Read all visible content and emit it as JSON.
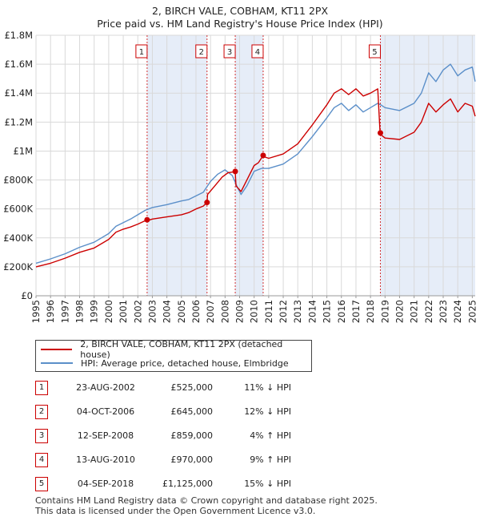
{
  "chart_data": {
    "type": "line",
    "title": "2, BIRCH VALE, COBHAM, KT11 2PX",
    "subtitle": "Price paid vs. HM Land Registry's House Price Index (HPI)",
    "xlim": [
      1995,
      2025.2
    ],
    "ylim": [
      0,
      1800000
    ],
    "x_ticks": [
      1995,
      1996,
      1997,
      1998,
      1999,
      2000,
      2001,
      2002,
      2003,
      2004,
      2005,
      2006,
      2007,
      2008,
      2009,
      2010,
      2011,
      2012,
      2013,
      2014,
      2015,
      2016,
      2017,
      2018,
      2019,
      2020,
      2021,
      2022,
      2023,
      2024,
      2025
    ],
    "y_ticks": [
      0,
      200000,
      400000,
      600000,
      800000,
      1000000,
      1200000,
      1400000,
      1600000,
      1800000
    ],
    "y_tick_labels": [
      "£0",
      "£200K",
      "£400K",
      "£600K",
      "£800K",
      "£1M",
      "£1.2M",
      "£1.4M",
      "£1.6M",
      "£1.8M"
    ],
    "grid": true,
    "series": [
      {
        "name": "2, BIRCH VALE, COBHAM, KT11 2PX (detached house)",
        "color": "#cc0000",
        "x": [
          1995,
          1996,
          1997,
          1998,
          1999,
          2000,
          2000.5,
          2001,
          2001.5,
          2002,
          2002.64,
          2002.7,
          2003,
          2004,
          2005,
          2005.5,
          2006,
          2006.5,
          2006.76,
          2006.8,
          2007.3,
          2007.8,
          2008.2,
          2008.55,
          2008.7,
          2008.75,
          2009.1,
          2009.5,
          2010,
          2010.3,
          2010.62,
          2010.7,
          2011,
          2012,
          2013,
          2014,
          2015,
          2015.5,
          2016,
          2016.5,
          2017,
          2017.5,
          2018,
          2018.5,
          2018.66,
          2018.75,
          2019,
          2020,
          2021,
          2021.5,
          2022,
          2022.5,
          2023,
          2023.5,
          2024,
          2024.5,
          2025,
          2025.2
        ],
        "y": [
          200000,
          225000,
          260000,
          300000,
          330000,
          390000,
          440000,
          460000,
          475000,
          495000,
          525000,
          520000,
          530000,
          545000,
          560000,
          575000,
          600000,
          620000,
          645000,
          700000,
          760000,
          820000,
          850000,
          855000,
          859000,
          760000,
          720000,
          800000,
          900000,
          920000,
          970000,
          960000,
          950000,
          980000,
          1050000,
          1180000,
          1320000,
          1400000,
          1430000,
          1390000,
          1430000,
          1380000,
          1400000,
          1430000,
          1125000,
          1110000,
          1090000,
          1080000,
          1130000,
          1200000,
          1330000,
          1270000,
          1320000,
          1360000,
          1270000,
          1330000,
          1310000,
          1240000
        ]
      },
      {
        "name": "HPI: Average price, detached house, Elmbridge",
        "color": "#5b8fc9",
        "x": [
          1995,
          1996,
          1997,
          1998,
          1999,
          2000,
          2000.5,
          2001,
          2001.5,
          2002,
          2002.5,
          2003,
          2004,
          2005,
          2005.5,
          2006,
          2006.5,
          2007,
          2007.5,
          2008,
          2008.5,
          2008.8,
          2009.1,
          2009.5,
          2010,
          2010.5,
          2011,
          2012,
          2013,
          2014,
          2015,
          2015.5,
          2016,
          2016.5,
          2017,
          2017.5,
          2018,
          2018.5,
          2018.7,
          2019,
          2020,
          2021,
          2021.5,
          2022,
          2022.5,
          2023,
          2023.5,
          2024,
          2024.5,
          2025,
          2025.2
        ],
        "y": [
          225000,
          255000,
          290000,
          335000,
          370000,
          430000,
          480000,
          505000,
          530000,
          560000,
          590000,
          610000,
          630000,
          655000,
          665000,
          690000,
          715000,
          790000,
          840000,
          870000,
          830000,
          760000,
          700000,
          760000,
          860000,
          880000,
          880000,
          910000,
          980000,
          1100000,
          1230000,
          1300000,
          1330000,
          1280000,
          1320000,
          1270000,
          1300000,
          1330000,
          1320000,
          1300000,
          1280000,
          1330000,
          1400000,
          1540000,
          1480000,
          1560000,
          1600000,
          1520000,
          1560000,
          1580000,
          1480000
        ]
      }
    ],
    "markers": [
      {
        "label": "1",
        "x": 2002.64,
        "y": 525000
      },
      {
        "label": "2",
        "x": 2006.76,
        "y": 645000
      },
      {
        "label": "3",
        "x": 2008.7,
        "y": 859000
      },
      {
        "label": "4",
        "x": 2010.62,
        "y": 970000
      },
      {
        "label": "5",
        "x": 2018.68,
        "y": 1125000
      }
    ],
    "shaded_ranges": [
      [
        2002.64,
        2006.76
      ],
      [
        2008.7,
        2010.62
      ],
      [
        2018.68,
        2025.2
      ]
    ]
  },
  "legend": {
    "property_label": "2, BIRCH VALE, COBHAM, KT11 2PX (detached house)",
    "hpi_label": "HPI: Average price, detached house, Elmbridge"
  },
  "sales": [
    {
      "num": "1",
      "date": "23-AUG-2002",
      "price": "£525,000",
      "hpi": "11% ↓ HPI"
    },
    {
      "num": "2",
      "date": "04-OCT-2006",
      "price": "£645,000",
      "hpi": "12% ↓ HPI"
    },
    {
      "num": "3",
      "date": "12-SEP-2008",
      "price": "£859,000",
      "hpi": "4% ↑ HPI"
    },
    {
      "num": "4",
      "date": "13-AUG-2010",
      "price": "£970,000",
      "hpi": "9% ↑ HPI"
    },
    {
      "num": "5",
      "date": "04-SEP-2018",
      "price": "£1,125,000",
      "hpi": "15% ↓ HPI"
    }
  ],
  "footer": {
    "line1": "Contains HM Land Registry data © Crown copyright and database right 2025.",
    "line2": "This data is licensed under the Open Government Licence v3.0."
  }
}
